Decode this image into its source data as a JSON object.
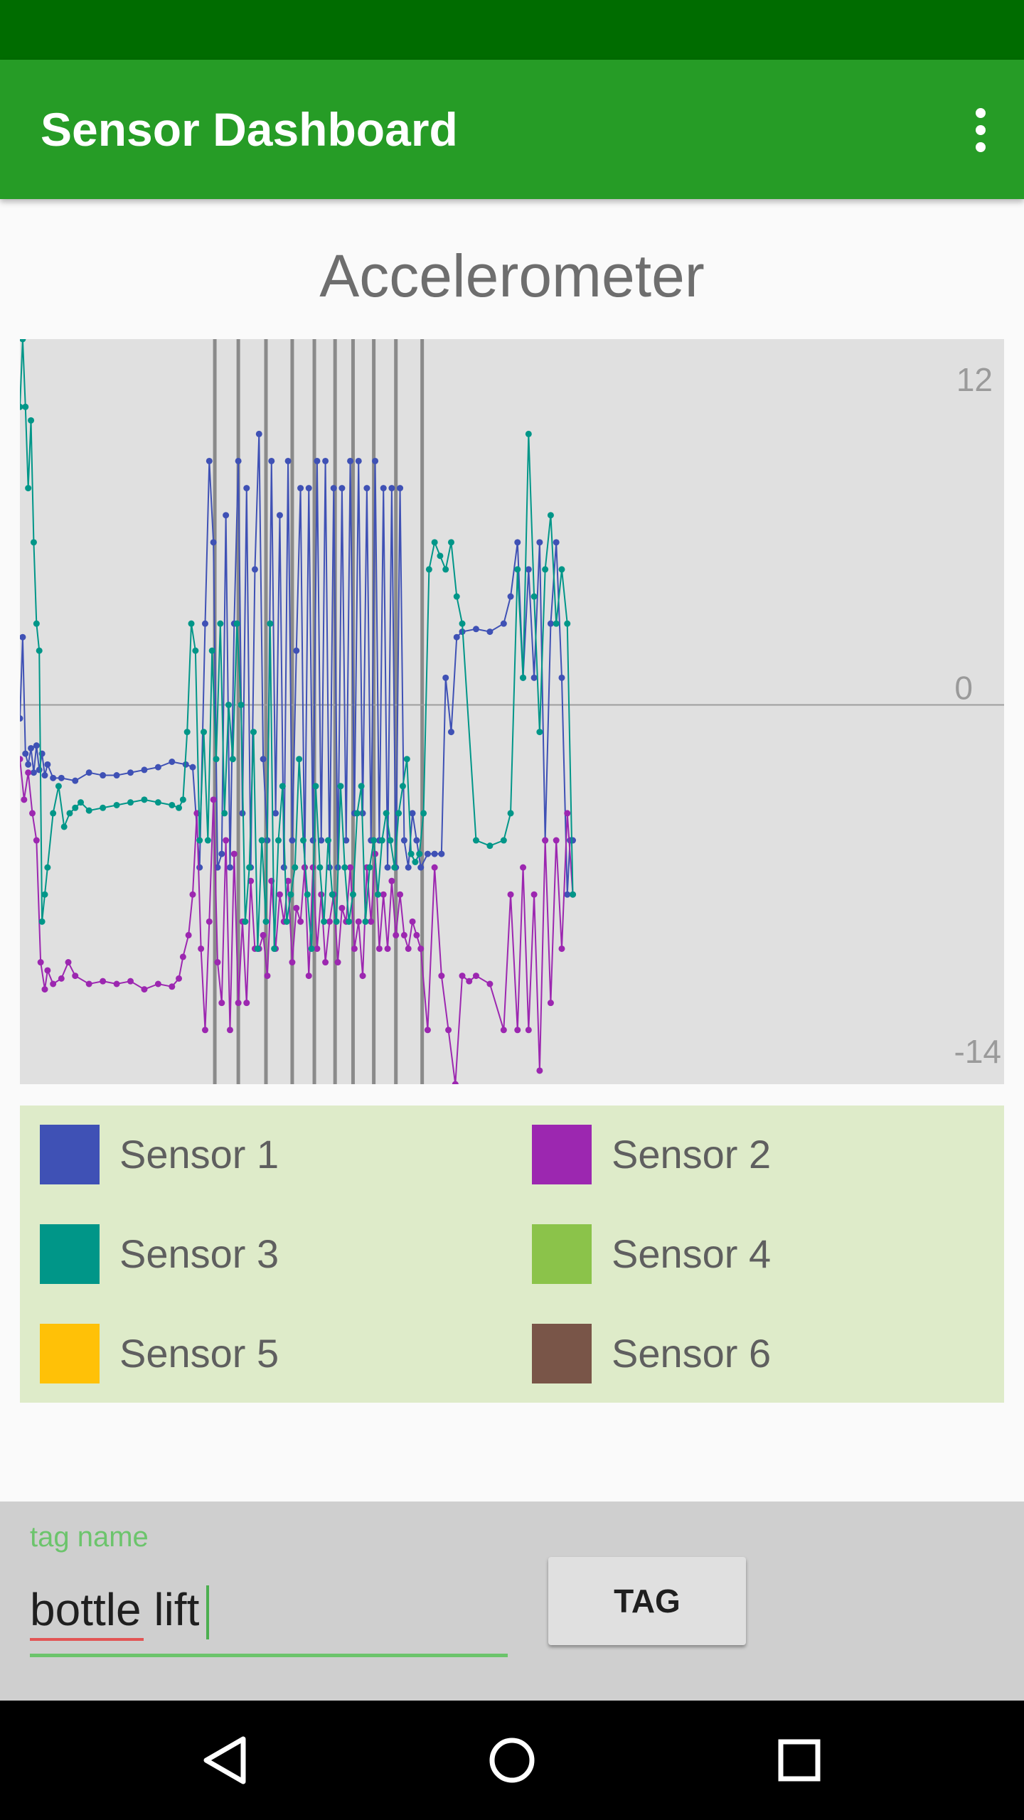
{
  "app_bar": {
    "title": "Sensor Dashboard",
    "menu_icon": "more-vert-icon"
  },
  "chart_data": {
    "type": "line",
    "title": "Accelerometer",
    "y_tick_labels": [
      "12",
      "0",
      "-14"
    ],
    "ylim": [
      -14,
      13.5
    ],
    "zero_line": true,
    "tag_markers_x": [
      141,
      158,
      178,
      197,
      213,
      228,
      241,
      256,
      272,
      291
    ],
    "series": [
      {
        "name": "Sensor 1",
        "color": "#3f51b5",
        "x": [
          0,
          2,
          4,
          6,
          8,
          10,
          12,
          14,
          16,
          18,
          20,
          24,
          30,
          40,
          50,
          60,
          70,
          80,
          90,
          100,
          110,
          120,
          125,
          130,
          134,
          137,
          140,
          143,
          146,
          149,
          152,
          155,
          158,
          161,
          164,
          167,
          170,
          173,
          176,
          179,
          182,
          185,
          188,
          191,
          194,
          197,
          200,
          203,
          206,
          209,
          212,
          215,
          218,
          221,
          224,
          227,
          230,
          233,
          236,
          239,
          242,
          245,
          248,
          251,
          254,
          257,
          260,
          263,
          266,
          269,
          272,
          275,
          278,
          281,
          284,
          287,
          290,
          295,
          300,
          305,
          308,
          312,
          316,
          320,
          330,
          340,
          350,
          355,
          360,
          364,
          368,
          372,
          376,
          380,
          384,
          388,
          392,
          396,
          398,
          400
        ],
        "y": [
          -0.5,
          2.5,
          -1.8,
          -2.2,
          -1.6,
          -2.5,
          -1.5,
          -2.4,
          -1.8,
          -2.6,
          -2.2,
          -2.7,
          -2.7,
          -2.8,
          -2.5,
          -2.6,
          -2.6,
          -2.5,
          -2.4,
          -2.3,
          -2.1,
          -2.2,
          -2.3,
          -6,
          3,
          9,
          6,
          -6,
          -5.5,
          7,
          -6,
          3,
          9,
          -4,
          8,
          -6,
          5,
          10,
          -2,
          -5,
          9,
          -4,
          7,
          -6,
          9,
          -5,
          2,
          8,
          -6,
          8,
          -5,
          9,
          -5,
          9,
          -6,
          8,
          -6,
          8,
          -5,
          9,
          -4,
          9,
          -4,
          8,
          -5,
          9,
          -5,
          8,
          -6,
          8,
          -6,
          8,
          -5,
          -6,
          -4,
          -5,
          -6,
          -5.5,
          -5.5,
          -5.5,
          1,
          -1,
          2.5,
          2.7,
          2.8,
          2.7,
          3,
          4,
          6,
          1,
          5,
          1,
          6,
          -5,
          3,
          6,
          1,
          -7,
          -5,
          -5
        ],
        "values_meaning": "acceleration"
      },
      {
        "name": "Sensor 2",
        "color": "#9c27b0",
        "x": [
          0,
          3,
          6,
          9,
          12,
          15,
          18,
          20,
          24,
          30,
          35,
          40,
          50,
          60,
          70,
          80,
          90,
          100,
          110,
          115,
          118,
          122,
          125,
          128,
          131,
          134,
          137,
          140,
          143,
          146,
          149,
          152,
          155,
          158,
          161,
          164,
          167,
          170,
          173,
          176,
          179,
          182,
          185,
          188,
          191,
          194,
          197,
          200,
          203,
          206,
          209,
          212,
          215,
          218,
          221,
          224,
          227,
          230,
          233,
          236,
          239,
          242,
          245,
          248,
          251,
          254,
          257,
          260,
          263,
          266,
          269,
          272,
          275,
          278,
          281,
          284,
          287,
          290,
          295,
          300,
          305,
          310,
          315,
          320,
          325,
          330,
          340,
          350,
          355,
          360,
          364,
          368,
          372,
          376,
          380,
          384,
          388,
          392,
          396,
          400
        ],
        "y": [
          -2,
          -3.5,
          -2.5,
          -4,
          -5,
          -9.5,
          -10.5,
          -9.8,
          -10.3,
          -10.1,
          -9.5,
          -10,
          -10.3,
          -10.2,
          -10.3,
          -10.2,
          -10.5,
          -10.3,
          -10.4,
          -10.1,
          -9.3,
          -8.5,
          -7,
          -4,
          -9,
          -12,
          -8,
          -3.5,
          -9.5,
          -11,
          -5,
          -12,
          -5.5,
          -11,
          -8,
          -11,
          -6.5,
          -9,
          -9,
          -8.5,
          -10,
          -6.5,
          -9,
          -7,
          -8,
          -6.5,
          -9.5,
          -7.5,
          -8,
          -6,
          -10,
          -6,
          -9,
          -7,
          -9.5,
          -8,
          -7,
          -9.5,
          -7.5,
          -8,
          -6,
          -9,
          -8,
          -10,
          -6,
          -8,
          -5.5,
          -9,
          -7,
          -9,
          -6.5,
          -8.5,
          -7,
          -8.5,
          -9,
          -8,
          -8.5,
          -9,
          -12,
          -6,
          -10,
          -12,
          -14,
          -10,
          -10.2,
          -10,
          -10.3,
          -12,
          -7,
          -12,
          -6,
          -12,
          -7,
          -13.5,
          -5,
          -11,
          -5,
          -9,
          -4,
          -7
        ],
        "values_meaning": "acceleration"
      },
      {
        "name": "Sensor 3",
        "color": "#009688",
        "x": [
          0,
          2,
          4,
          6,
          8,
          10,
          12,
          14,
          16,
          18,
          20,
          24,
          28,
          32,
          36,
          40,
          44,
          50,
          60,
          70,
          80,
          90,
          100,
          110,
          115,
          118,
          121,
          124,
          127,
          130,
          133,
          136,
          139,
          142,
          145,
          148,
          151,
          154,
          157,
          160,
          163,
          166,
          169,
          172,
          175,
          178,
          181,
          184,
          187,
          190,
          193,
          196,
          199,
          202,
          205,
          208,
          211,
          214,
          217,
          220,
          223,
          226,
          229,
          232,
          235,
          238,
          241,
          244,
          247,
          250,
          253,
          256,
          259,
          262,
          265,
          268,
          271,
          274,
          277,
          280,
          283,
          286,
          289,
          292,
          296,
          300,
          304,
          308,
          312,
          316,
          320,
          330,
          340,
          350,
          355,
          360,
          364,
          368,
          372,
          376,
          380,
          384,
          388,
          392,
          396,
          400
        ],
        "y": [
          11,
          13.5,
          11,
          8,
          10.5,
          6,
          3,
          2,
          -8,
          -7,
          -6,
          -4,
          -3,
          -4.5,
          -4,
          -3.8,
          -3.6,
          -3.9,
          -3.8,
          -3.7,
          -3.6,
          -3.5,
          -3.6,
          -3.7,
          -3.8,
          -3.5,
          -1,
          3,
          2,
          -5,
          -1,
          -5,
          2,
          -2,
          3,
          -4,
          0,
          -2,
          3,
          0,
          -8,
          -6,
          -1,
          -9,
          -5,
          -8,
          3,
          -9,
          -5,
          -3,
          -8,
          -7,
          -6,
          -2,
          -5,
          -7,
          -9,
          -3,
          -6,
          -8,
          -5,
          -7,
          -8,
          -3,
          -6,
          -8,
          -7,
          -4,
          -3,
          -8,
          -6,
          -5,
          -7,
          -5,
          -4,
          -5,
          -6,
          -4,
          -3,
          -2,
          -5.5,
          -5.8,
          -5.5,
          -4,
          5,
          6,
          5.5,
          5,
          6,
          4,
          3,
          -5,
          -5.2,
          -5,
          -4,
          5,
          1,
          10,
          4,
          -1,
          5,
          7,
          3,
          5,
          3,
          -7
        ],
        "values_meaning": "acceleration"
      },
      {
        "name": "Sensor 4",
        "color": "#8bc34a",
        "x": [],
        "y": []
      },
      {
        "name": "Sensor 5",
        "color": "#ffc107",
        "x": [],
        "y": []
      },
      {
        "name": "Sensor 6",
        "color": "#795548",
        "x": [],
        "y": []
      }
    ]
  },
  "legend": {
    "items": [
      {
        "label": "Sensor 1",
        "color": "#3f51b5"
      },
      {
        "label": "Sensor 2",
        "color": "#9c27b0"
      },
      {
        "label": "Sensor 3",
        "color": "#009688"
      },
      {
        "label": "Sensor 4",
        "color": "#8bc34a"
      },
      {
        "label": "Sensor 5",
        "color": "#ffc107"
      },
      {
        "label": "Sensor 6",
        "color": "#795548"
      }
    ]
  },
  "tag_panel": {
    "field_label": "tag name",
    "input_value": "bottle lift",
    "button_label": "TAG"
  },
  "nav_bar": {
    "back_icon": "back-triangle-icon",
    "home_icon": "home-circle-icon",
    "recents_icon": "recents-square-icon"
  },
  "colors": {
    "status_bar": "#006c00",
    "app_bar": "#269c26",
    "accent": "#6cc46c",
    "legend_background": "#deebc9",
    "plot_background": "#e0e0e0"
  }
}
